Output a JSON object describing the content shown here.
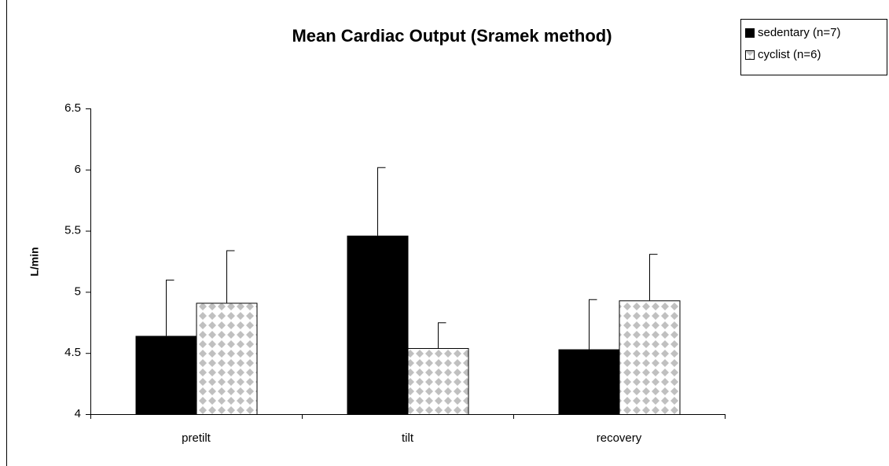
{
  "chart_data": {
    "type": "bar",
    "title": "Mean Cardiac Output (Sramek method)",
    "y_label": "L/min",
    "categories": [
      "pretilt",
      "tilt",
      "recovery"
    ],
    "series": [
      {
        "name": "sedentary (n=7)",
        "color": "#000000",
        "values": [
          4.64,
          5.46,
          4.53
        ],
        "errors": [
          0.46,
          0.56,
          0.41
        ]
      },
      {
        "name": "cyclist (n=6)",
        "color": "#c0c0c0",
        "pattern": "diamond",
        "values": [
          4.91,
          4.54,
          4.93
        ],
        "errors": [
          0.43,
          0.21,
          0.38
        ]
      }
    ],
    "ylim": [
      4,
      6.5
    ],
    "yticks": [
      4,
      4.5,
      5,
      5.5,
      6,
      6.5
    ],
    "grid": false,
    "legend": "top-right"
  }
}
